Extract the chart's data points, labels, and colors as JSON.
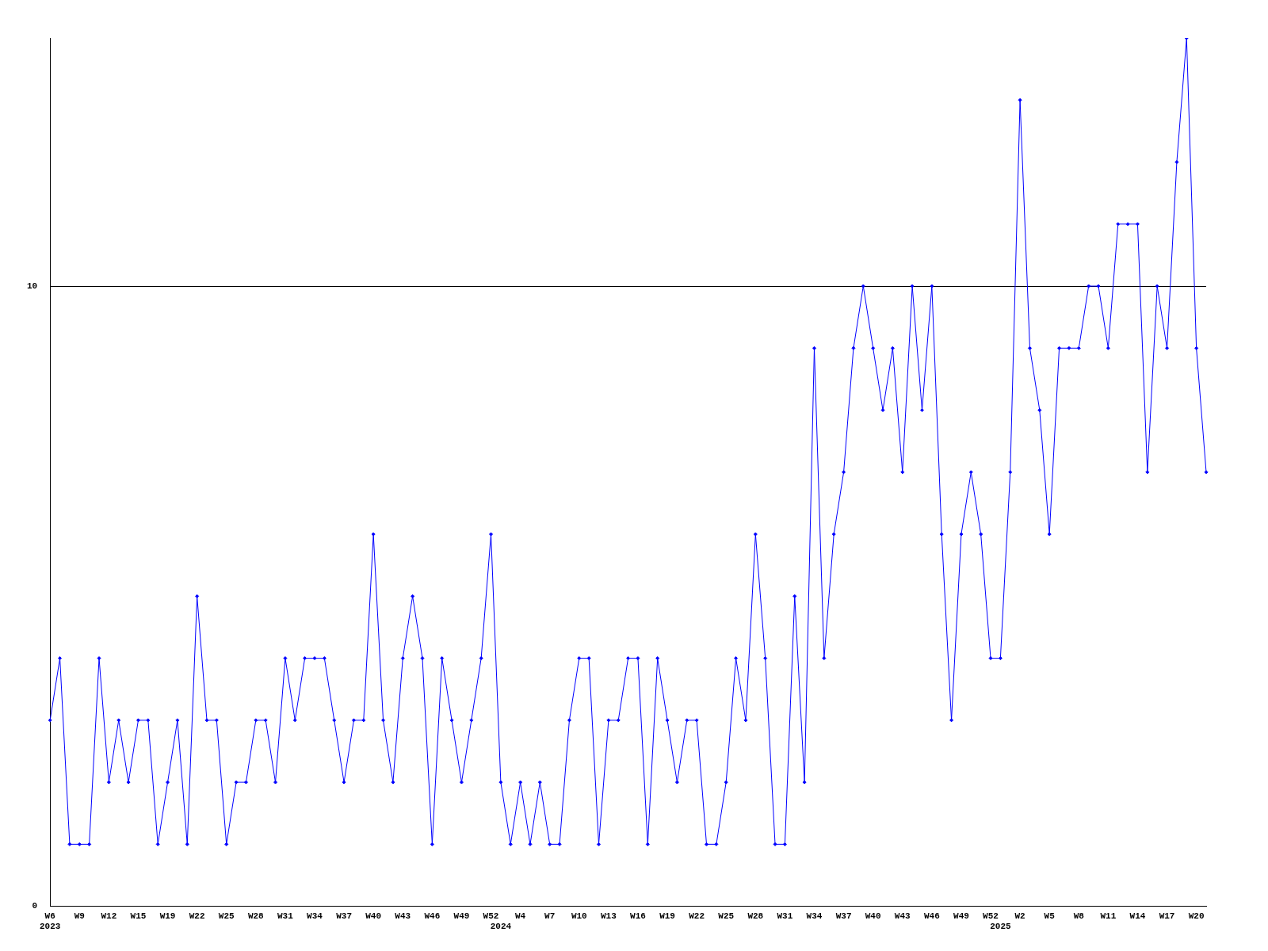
{
  "chart_data": {
    "type": "line",
    "categories": [
      "W6\n2023",
      null,
      null,
      "W9",
      null,
      null,
      "W12",
      null,
      null,
      "W15",
      null,
      null,
      "W19",
      null,
      null,
      "W22",
      null,
      null,
      "W25",
      null,
      null,
      "W28",
      null,
      null,
      "W31",
      null,
      null,
      "W34",
      null,
      null,
      "W37",
      null,
      null,
      "W40",
      null,
      null,
      "W43",
      null,
      null,
      "W46",
      null,
      null,
      "W49",
      null,
      null,
      "W52",
      "\n2024",
      null,
      "W4",
      null,
      null,
      "W7",
      null,
      null,
      "W10",
      null,
      null,
      "W13",
      null,
      null,
      "W16",
      null,
      null,
      "W19",
      null,
      null,
      "W22",
      null,
      null,
      "W25",
      null,
      null,
      "W28",
      null,
      null,
      "W31",
      null,
      null,
      "W34",
      null,
      null,
      "W37",
      null,
      null,
      "W40",
      null,
      null,
      "W43",
      null,
      null,
      "W46",
      null,
      null,
      "W49",
      null,
      null,
      "W52",
      "\n2025",
      null,
      "W2",
      null,
      null,
      "W5",
      null,
      null,
      "W8",
      null,
      null,
      "W11",
      null,
      null,
      "W14",
      null,
      null,
      "W17",
      null,
      null,
      "W20",
      null
    ],
    "series": [
      {
        "color": "#0000ff",
        "values": [
          3,
          4,
          1,
          1,
          1,
          4,
          2,
          3,
          2,
          3,
          3,
          1,
          2,
          3,
          1,
          5,
          3,
          3,
          1,
          2,
          2,
          3,
          3,
          2,
          4,
          3,
          4,
          4,
          4,
          3,
          2,
          3,
          3,
          6,
          3,
          2,
          4,
          5,
          4,
          1,
          4,
          3,
          2,
          3,
          4,
          6,
          2,
          1,
          2,
          1,
          2,
          1,
          1,
          3,
          4,
          4,
          1,
          3,
          3,
          4,
          4,
          1,
          4,
          3,
          2,
          3,
          3,
          1,
          1,
          2,
          4,
          3,
          6,
          4,
          1,
          1,
          5,
          2,
          9,
          4,
          6,
          7,
          9,
          10,
          9,
          8,
          9,
          7,
          10,
          8,
          10,
          6,
          3,
          6,
          7,
          6,
          4,
          4,
          7,
          13,
          9,
          8,
          6,
          9,
          9,
          9,
          10,
          10,
          9,
          11,
          11,
          11,
          7,
          10,
          9,
          12,
          14,
          9,
          7
        ]
      }
    ],
    "ylim": [
      0,
      14
    ],
    "yticks": [
      0,
      10
    ],
    "grid": "y",
    "marker": "diamond",
    "line_style": "solid"
  }
}
